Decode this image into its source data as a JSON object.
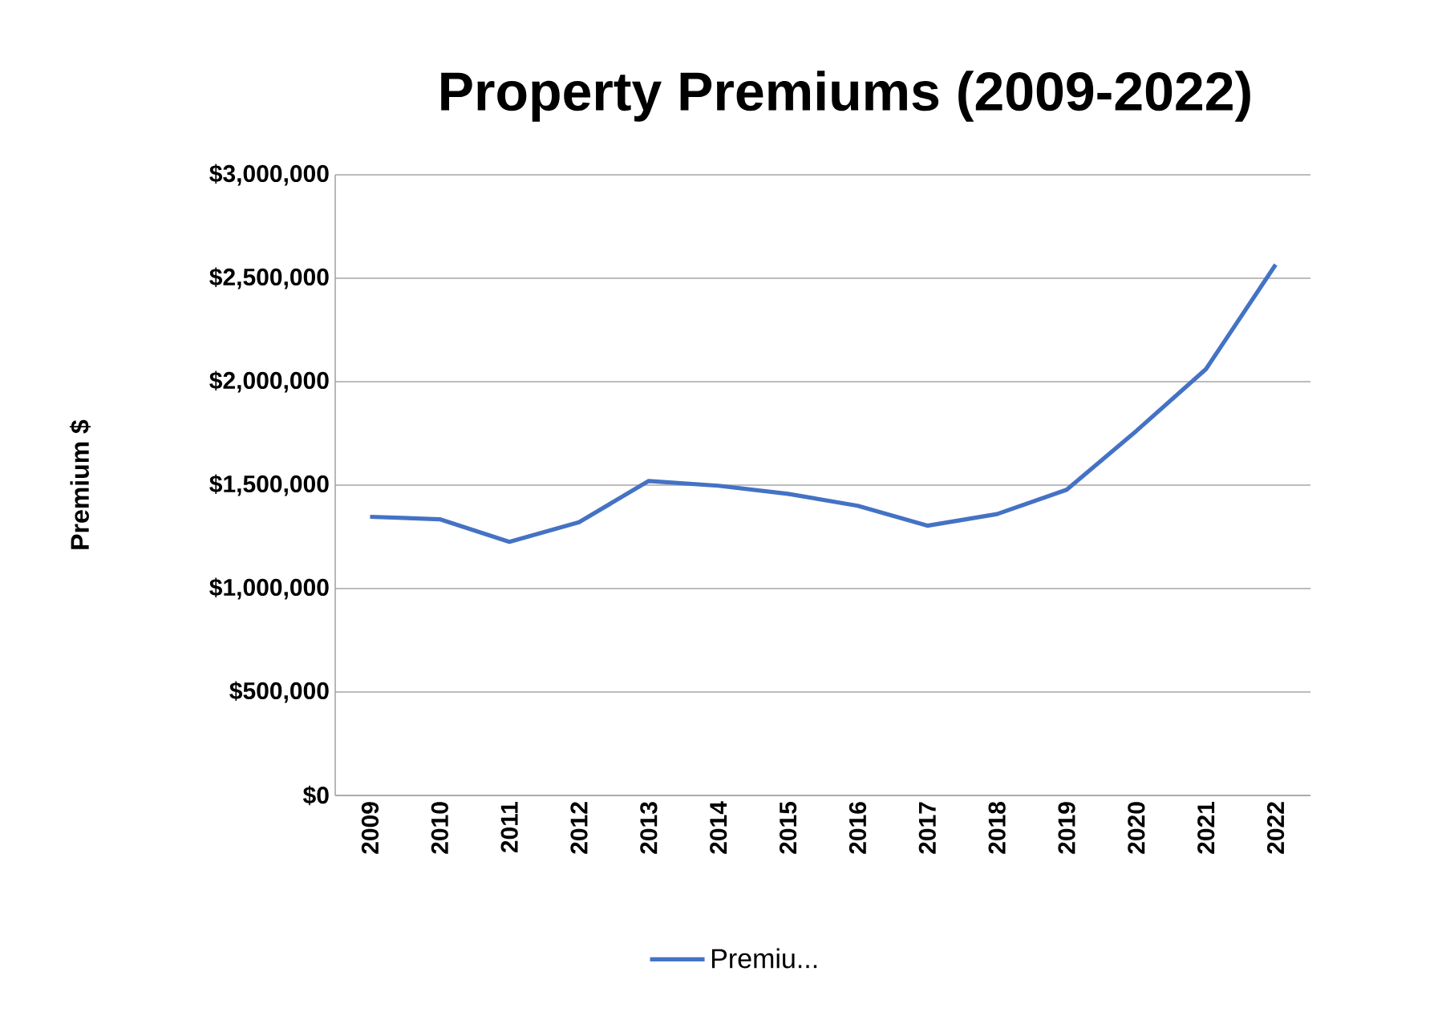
{
  "chart_data": {
    "type": "line",
    "title": "Property Premiums (2009-2022)",
    "ylabel": "Premium $",
    "categories": [
      "2009",
      "2010",
      "2011",
      "2012",
      "2013",
      "2014",
      "2015",
      "2016",
      "2017",
      "2018",
      "2019",
      "2020",
      "2021",
      "2022"
    ],
    "series": [
      {
        "name": "Premiu...",
        "color": "#4472c4",
        "values": [
          1347000,
          1335000,
          1226000,
          1321000,
          1520000,
          1497000,
          1458000,
          1400000,
          1304000,
          1360000,
          1478000,
          1762000,
          2061000,
          2566000
        ]
      }
    ],
    "ylim": [
      0,
      3000000
    ],
    "yticks": [
      {
        "value": 0,
        "label": "$0"
      },
      {
        "value": 500000,
        "label": "$500,000"
      },
      {
        "value": 1000000,
        "label": "$1,000,000"
      },
      {
        "value": 1500000,
        "label": "$1,500,000"
      },
      {
        "value": 2000000,
        "label": "$2,000,000"
      },
      {
        "value": 2500000,
        "label": "$2,500,000"
      },
      {
        "value": 3000000,
        "label": "$3,000,000"
      }
    ],
    "grid": "y",
    "legend": "bottom",
    "marker": "none",
    "line_style": "solid"
  }
}
